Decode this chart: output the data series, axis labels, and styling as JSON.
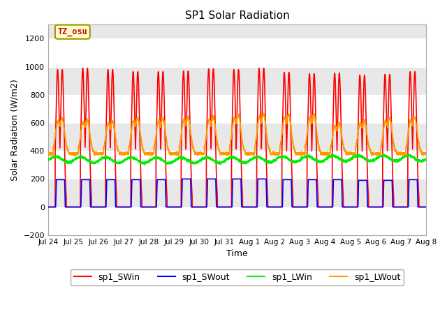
{
  "title": "SP1 Solar Radiation",
  "xlabel": "Time",
  "ylabel": "Solar Radiation (W/m2)",
  "ylim": [
    -200,
    1300
  ],
  "yticks": [
    -200,
    0,
    200,
    400,
    600,
    800,
    1000,
    1200
  ],
  "x_labels": [
    "Jul 24",
    "Jul 25",
    "Jul 26",
    "Jul 27",
    "Jul 28",
    "Jul 29",
    "Jul 30",
    "Jul 31",
    "Aug 1",
    "Aug 2",
    "Aug 3",
    "Aug 4",
    "Aug 5",
    "Aug 6",
    "Aug 7",
    "Aug 8"
  ],
  "annotation_text": "TZ_osu",
  "annotation_color": "#cc0000",
  "annotation_bg": "#ffffcc",
  "annotation_border": "#999900",
  "colors": {
    "SWin": "#ff0000",
    "SWout": "#0000ff",
    "LWin": "#00ee00",
    "LWout": "#ff9900"
  },
  "legend_labels": [
    "sp1_SWin",
    "sp1_SWout",
    "sp1_LWin",
    "sp1_LWout"
  ],
  "background_color": "#ffffff",
  "plot_bg_color": "#e8e8e8",
  "grid_color": "#ffffff",
  "n_days": 15,
  "sw_in_peaks": [
    1000,
    1010,
    1000,
    985,
    985,
    990,
    1005,
    1000,
    1010,
    980,
    970,
    975,
    960,
    965,
    985
  ],
  "sw_out_peaks": [
    195,
    195,
    195,
    195,
    195,
    200,
    200,
    200,
    200,
    195,
    195,
    195,
    190,
    190,
    195
  ],
  "lw_out_peaks": [
    640,
    630,
    620,
    640,
    640,
    650,
    650,
    665,
    670,
    665,
    665,
    600,
    620,
    640,
    645
  ]
}
